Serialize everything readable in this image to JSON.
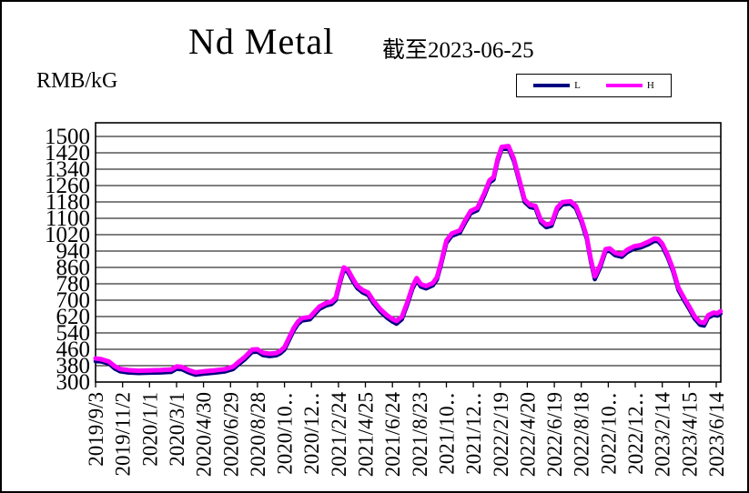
{
  "header": {
    "title": "Nd Metal",
    "subtitle": "截至2023-06-25",
    "unit_label": "RMB/kG"
  },
  "legend": {
    "items": [
      {
        "label": "L",
        "color": "#000080"
      },
      {
        "label": "H",
        "color": "#FF00FF"
      }
    ]
  },
  "chart_data": {
    "type": "line",
    "title": "Nd Metal",
    "subtitle": "截至2023-06-25",
    "ylabel": "RMB/kG",
    "xlabel": "",
    "ylim": [
      300,
      1500
    ],
    "ytick_step": 80,
    "grid": true,
    "legend_position": "top-right",
    "y_ticks": [
      300,
      380,
      460,
      540,
      620,
      700,
      780,
      860,
      940,
      1020,
      1100,
      1180,
      1260,
      1340,
      1420,
      1500
    ],
    "x_tick_labels": [
      "2019/9/3",
      "2019/11/2",
      "2020/1/1",
      "2020/3/1",
      "2020/4/30",
      "2020/6/29",
      "2020/8/28",
      "2020/10‥",
      "2020/12‥",
      "2021/2/24",
      "2021/4/25",
      "2021/6/24",
      "2021/8/23",
      "2021/10‥",
      "2021/12‥",
      "2022/2/19",
      "2022/4/20",
      "2022/6/19",
      "2022/8/18",
      "2022/10‥",
      "2022/12‥",
      "2023/2/14",
      "2023/4/15",
      "2023/6/14"
    ],
    "x_unit": "tick-index (one tick = 60 days from 2019/9/3)",
    "x": [
      0,
      0.2,
      0.5,
      0.7,
      0.9,
      1.2,
      1.6,
      2.0,
      2.4,
      2.8,
      3.0,
      3.2,
      3.45,
      3.7,
      4.0,
      4.4,
      4.8,
      5.1,
      5.3,
      5.55,
      5.8,
      6.0,
      6.2,
      6.45,
      6.7,
      6.85,
      7.0,
      7.2,
      7.35,
      7.5,
      7.65,
      7.95,
      8.1,
      8.3,
      8.55,
      8.75,
      8.9,
      9.05,
      9.2,
      9.35,
      9.55,
      9.7,
      9.9,
      10.1,
      10.3,
      10.55,
      10.8,
      11.0,
      11.15,
      11.35,
      11.55,
      11.75,
      11.9,
      12.05,
      12.25,
      12.5,
      12.65,
      12.8,
      13.0,
      13.2,
      13.5,
      13.7,
      13.9,
      14.15,
      14.4,
      14.6,
      14.75,
      14.9,
      15.05,
      15.3,
      15.5,
      15.7,
      15.9,
      16.1,
      16.3,
      16.5,
      16.7,
      16.9,
      17.1,
      17.3,
      17.6,
      17.8,
      18.0,
      18.2,
      18.35,
      18.5,
      18.7,
      18.9,
      19.05,
      19.25,
      19.5,
      19.7,
      19.95,
      20.2,
      20.5,
      20.7,
      20.85,
      21.0,
      21.2,
      21.4,
      21.6,
      21.8,
      22.0,
      22.2,
      22.4,
      22.55,
      22.7,
      22.9,
      23.05,
      23.16
    ],
    "series": [
      {
        "name": "L",
        "color": "#000080",
        "width": 4.5,
        "values": [
          402,
          400,
          390,
          366,
          352,
          346,
          343,
          345,
          346,
          349,
          364,
          362,
          346,
          335,
          340,
          345,
          351,
          363,
          386,
          413,
          446,
          448,
          431,
          426,
          430,
          440,
          458,
          513,
          553,
          583,
          600,
          606,
          629,
          657,
          674,
          681,
          700,
          780,
          848,
          837,
          789,
          758,
          737,
          725,
          684,
          644,
          614,
          595,
          584,
          606,
          677,
          757,
          796,
          766,
          757,
          772,
          800,
          870,
          979,
          1014,
          1029,
          1079,
          1124,
          1139,
          1209,
          1274,
          1289,
          1379,
          1438,
          1442,
          1379,
          1279,
          1179,
          1154,
          1149,
          1079,
          1056,
          1063,
          1139,
          1167,
          1171,
          1149,
          1084,
          999,
          889,
          802,
          859,
          937,
          941,
          919,
          911,
          934,
          951,
          957,
          974,
          989,
          987,
          964,
          909,
          839,
          749,
          701,
          657,
          609,
          579,
          575,
          614,
          627,
          624,
          634
        ]
      },
      {
        "name": "H",
        "color": "#FF00FF",
        "width": 5,
        "values": [
          415,
          412,
          400,
          378,
          364,
          358,
          355,
          357,
          358,
          361,
          376,
          374,
          358,
          347,
          352,
          357,
          363,
          375,
          398,
          425,
          458,
          460,
          443,
          438,
          442,
          452,
          470,
          525,
          565,
          595,
          612,
          618,
          641,
          669,
          686,
          693,
          712,
          792,
          860,
          849,
          801,
          770,
          749,
          737,
          696,
          656,
          626,
          608,
          598,
          619,
          689,
          769,
          808,
          778,
          769,
          784,
          812,
          882,
          991,
          1026,
          1041,
          1091,
          1136,
          1151,
          1221,
          1286,
          1301,
          1391,
          1449,
          1453,
          1391,
          1291,
          1191,
          1166,
          1161,
          1091,
          1069,
          1076,
          1151,
          1179,
          1183,
          1161,
          1096,
          1011,
          901,
          816,
          871,
          949,
          953,
          931,
          923,
          946,
          963,
          969,
          986,
          1001,
          999,
          976,
          921,
          851,
          761,
          713,
          669,
          621,
          593,
          589,
          626,
          639,
          636,
          646
        ]
      }
    ]
  }
}
